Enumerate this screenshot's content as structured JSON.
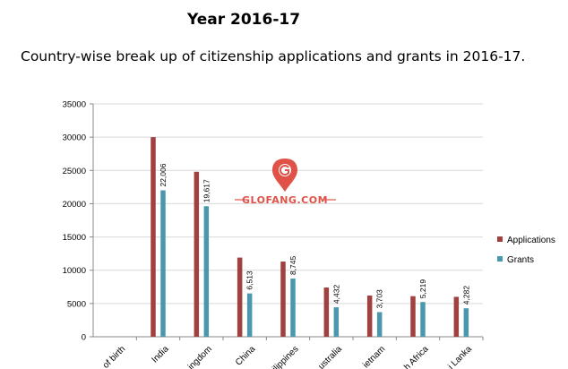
{
  "header": {
    "title": "Year 2016-17",
    "subtitle": "Country-wise break up of citizenship applications and grants in 2016-17."
  },
  "watermark": {
    "text": "GLOFANG.COM",
    "icon": "map-pin-logo-icon",
    "color": "#e05247"
  },
  "chart_data": {
    "type": "bar",
    "categories": [
      "of birth",
      "India",
      "ingdom",
      "China",
      "ilippines",
      "ustralia",
      "ietnam",
      "h Africa",
      "i Lanka"
    ],
    "series": [
      {
        "name": "Applications",
        "color": "#a0413f",
        "values": [
          0,
          30000,
          24800,
          11900,
          11300,
          7400,
          6200,
          6100,
          6000
        ],
        "labels": [
          "",
          "",
          "",
          "",
          "",
          "",
          "",
          "",
          ""
        ]
      },
      {
        "name": "Grants",
        "color": "#4a98ad",
        "values": [
          0,
          22006,
          19617,
          6513,
          8745,
          4432,
          3703,
          5219,
          4282
        ],
        "labels": [
          "",
          "22,006",
          "19,617",
          "6,513",
          "8,745",
          "4,432",
          "3,703",
          "5,219",
          "4,282"
        ]
      }
    ],
    "yticks": [
      "0",
      "5000",
      "10000",
      "15000",
      "20000",
      "25000",
      "30000",
      "35000"
    ],
    "ylim": [
      0,
      35000
    ],
    "grid": true,
    "legend": "right"
  }
}
